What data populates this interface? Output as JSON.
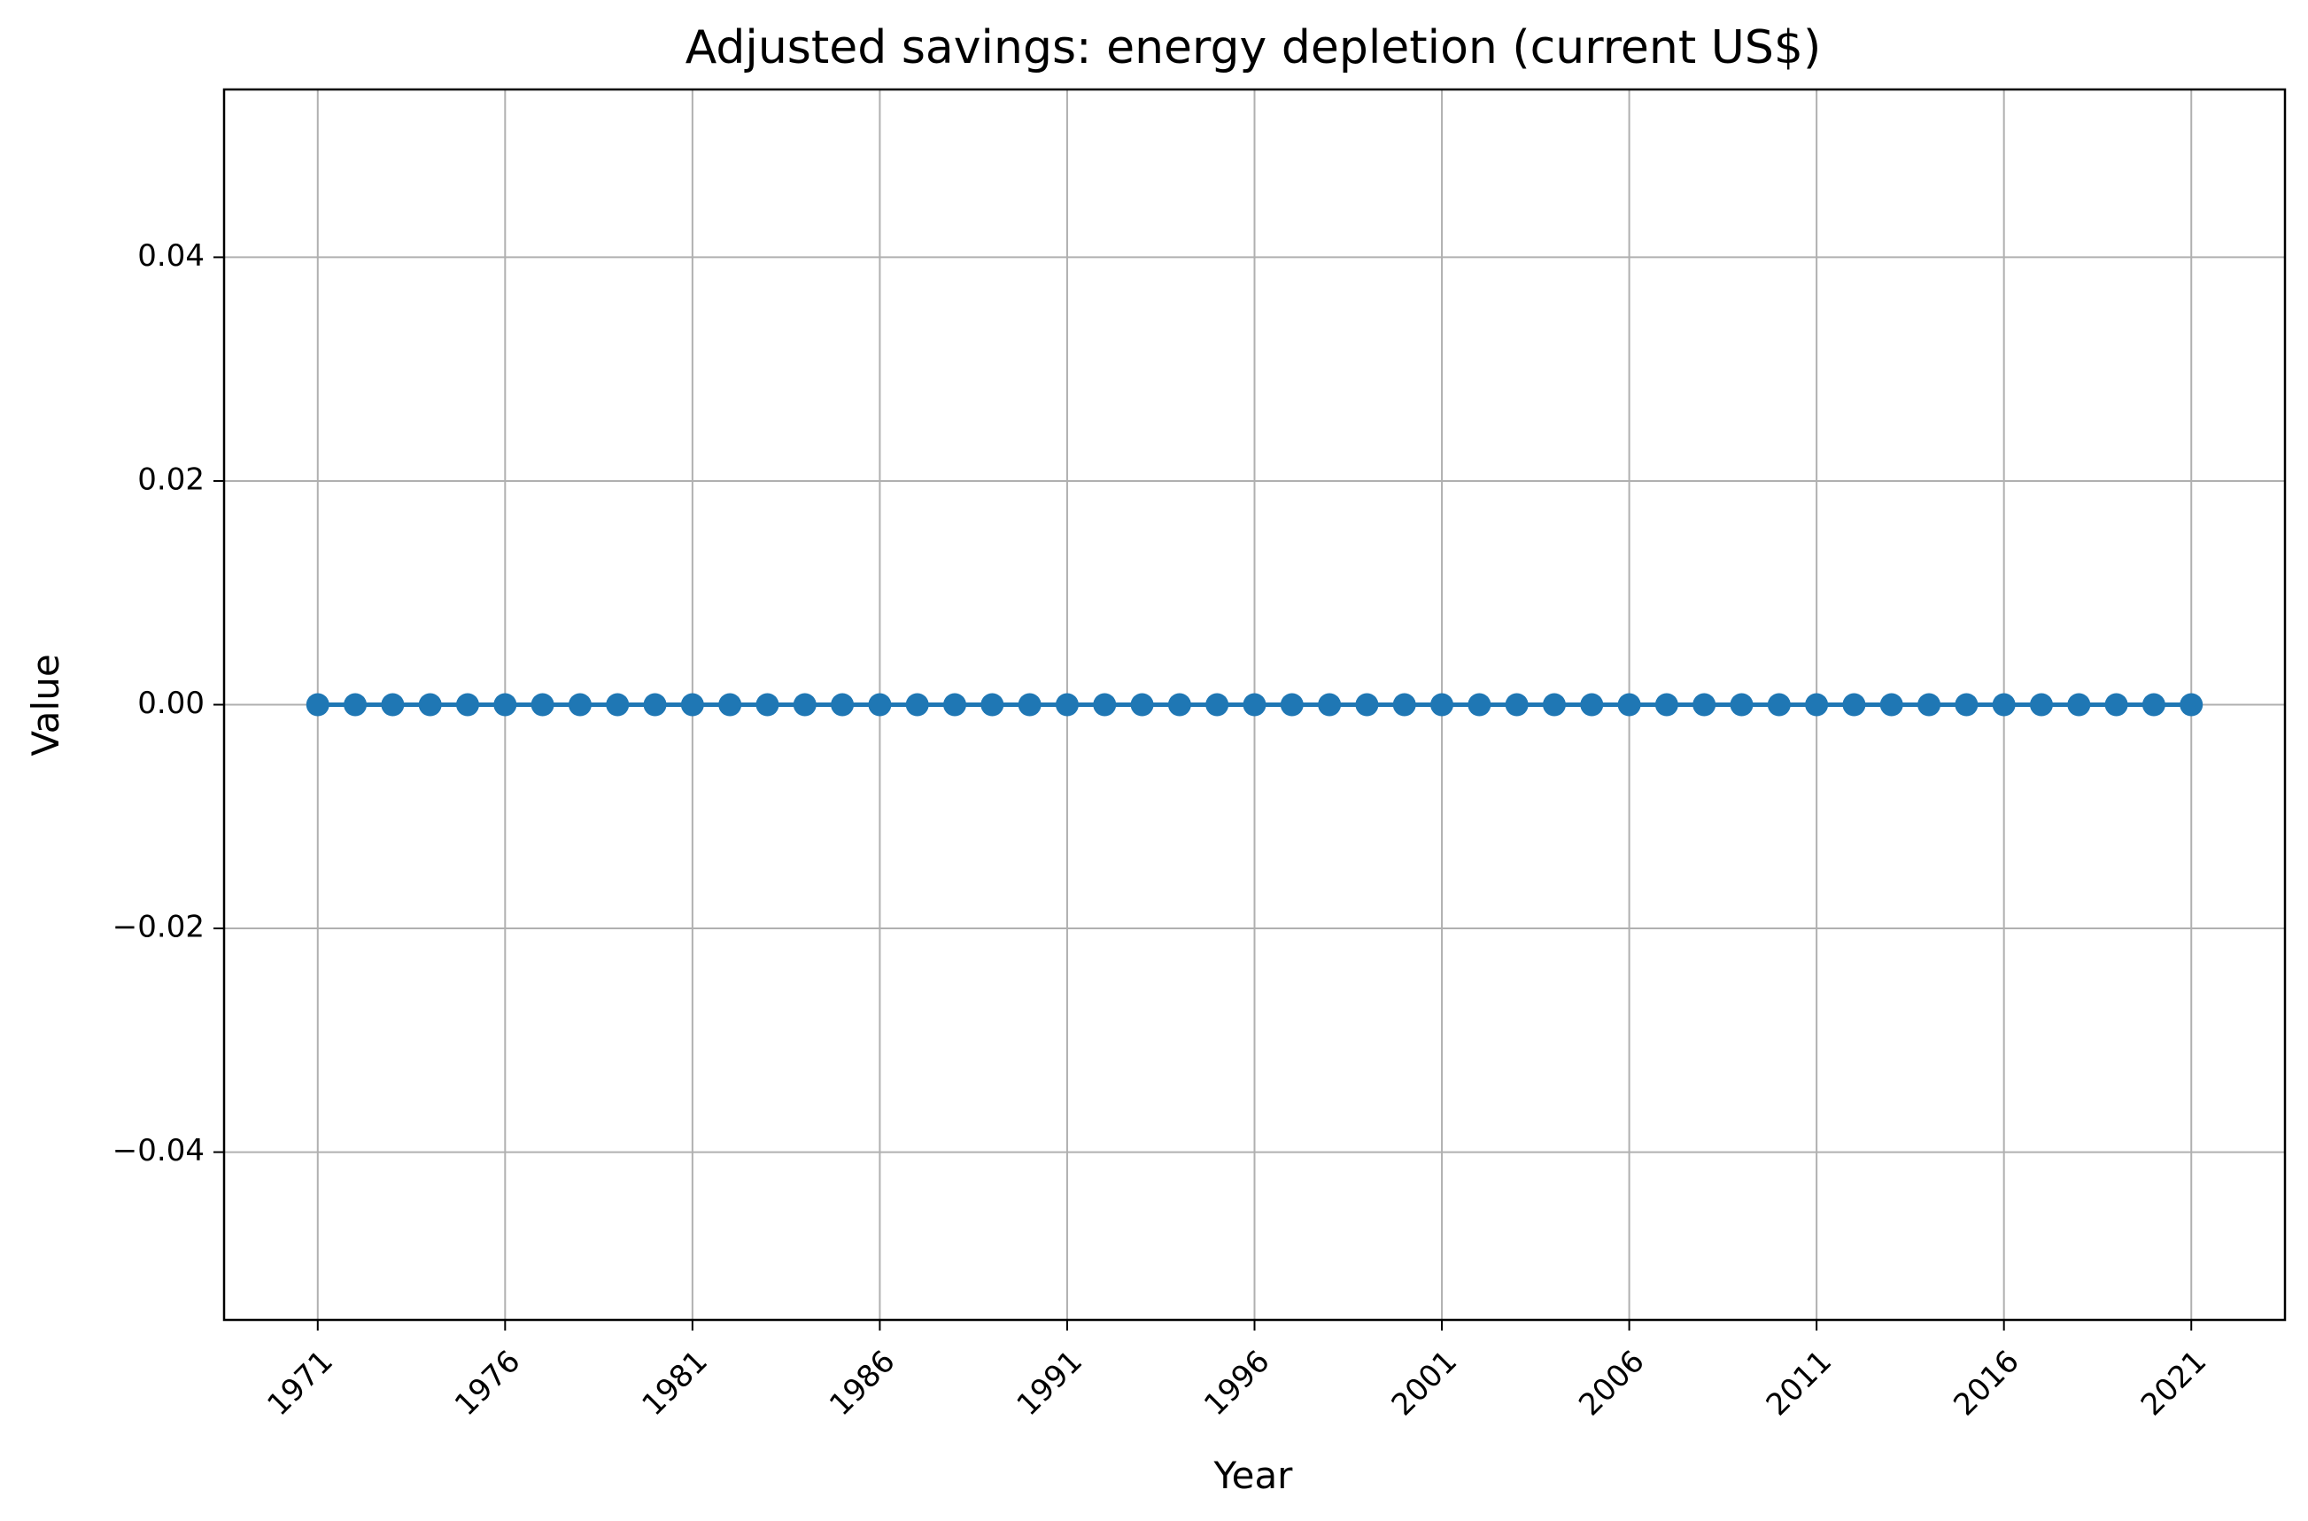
{
  "chart_data": {
    "type": "line",
    "title": "Adjusted savings: energy depletion (current US$)",
    "xlabel": "Year",
    "ylabel": "Value",
    "x": [
      1971,
      1972,
      1973,
      1974,
      1975,
      1976,
      1977,
      1978,
      1979,
      1980,
      1981,
      1982,
      1983,
      1984,
      1985,
      1986,
      1987,
      1988,
      1989,
      1990,
      1991,
      1992,
      1993,
      1994,
      1995,
      1996,
      1997,
      1998,
      1999,
      2000,
      2001,
      2002,
      2003,
      2004,
      2005,
      2006,
      2007,
      2008,
      2009,
      2010,
      2011,
      2012,
      2013,
      2014,
      2015,
      2016,
      2017,
      2018,
      2019,
      2020,
      2021
    ],
    "series": [
      {
        "values": [
          0,
          0,
          0,
          0,
          0,
          0,
          0,
          0,
          0,
          0,
          0,
          0,
          0,
          0,
          0,
          0,
          0,
          0,
          0,
          0,
          0,
          0,
          0,
          0,
          0,
          0,
          0,
          0,
          0,
          0,
          0,
          0,
          0,
          0,
          0,
          0,
          0,
          0,
          0,
          0,
          0,
          0,
          0,
          0,
          0,
          0,
          0,
          0,
          0,
          0,
          0
        ],
        "color": "#1f77b4"
      }
    ],
    "xticks": [
      "1971",
      "1976",
      "1981",
      "1986",
      "1991",
      "1996",
      "2001",
      "2006",
      "2011",
      "2016",
      "2021"
    ],
    "yticks": [
      "0.04",
      "0.02",
      "0.00",
      "−0.02",
      "−0.04"
    ],
    "xlim": [
      1968.5,
      2023.5
    ],
    "ylim": [
      -0.055,
      0.055
    ],
    "grid": true,
    "legend": "none"
  }
}
